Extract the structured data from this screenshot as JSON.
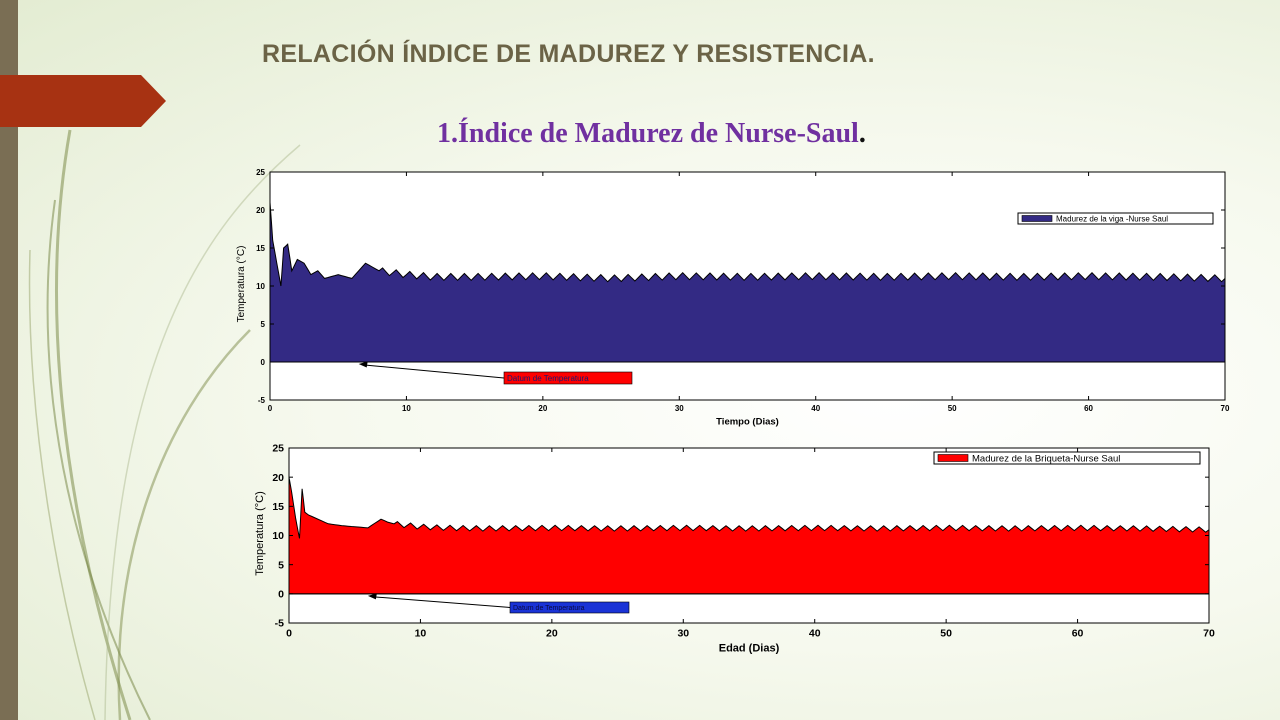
{
  "slide": {
    "title": "RELACIÓN ÍNDICE DE MADUREZ Y RESISTENCIA.",
    "subtitle": "1.Índice de Madurez de Nurse-Saul",
    "subtitle_dot": "."
  },
  "colors": {
    "left_bar": "#7a6e54",
    "accent_tab": "#a73212",
    "title": "#6b6346",
    "subtitle": "#7030a0"
  },
  "chart_data": [
    {
      "type": "area",
      "title": "",
      "xlabel": "Tiempo (Dias)",
      "ylabel": "Temperatura (°C)",
      "xlim": [
        0,
        70
      ],
      "ylim": [
        -5,
        25
      ],
      "xticks": [
        0,
        10,
        20,
        30,
        40,
        50,
        60,
        70
      ],
      "yticks": [
        -5,
        0,
        5,
        10,
        15,
        20,
        25
      ],
      "grid": false,
      "legend_position": "top-right",
      "fill_color": "#332a84",
      "series": [
        {
          "name": "Madurez de la viga -Nurse Saul",
          "x": [
            0,
            0.2,
            0.5,
            0.8,
            1.0,
            1.3,
            1.6,
            2.0,
            2.5,
            3.0,
            3.5,
            4.0,
            5.0,
            6.0,
            7.0,
            7.5,
            8.0,
            10.0,
            12.0,
            15.0,
            20.0,
            25.0,
            30.0,
            35.0,
            40.0,
            45.0,
            50.0,
            55.0,
            60.0,
            65.0,
            70.0
          ],
          "y": [
            21,
            16,
            13,
            10,
            15,
            15.5,
            12,
            13.5,
            13,
            11.5,
            12,
            11,
            11.5,
            11,
            13,
            12.5,
            12,
            11.5,
            11.2,
            11.2,
            11.3,
            11,
            11.3,
            11.2,
            11.3,
            11.2,
            11.3,
            11.2,
            11.3,
            11.2,
            11
          ]
        }
      ],
      "annotation": {
        "text": "Datum de Temperatura",
        "x": 6.5,
        "y": 0
      }
    },
    {
      "type": "area",
      "title": "",
      "xlabel": "Edad (Dias)",
      "ylabel": "Temperatura (°C)",
      "xlim": [
        0,
        70
      ],
      "ylim": [
        -5,
        25
      ],
      "xticks": [
        0,
        10,
        20,
        30,
        40,
        50,
        60,
        70
      ],
      "yticks": [
        -5,
        0,
        5,
        10,
        15,
        20,
        25
      ],
      "grid": false,
      "legend_position": "top-right",
      "fill_color": "#ff0000",
      "series": [
        {
          "name": "Madurez de la Briqueta-Nurse Saul",
          "x": [
            0,
            0.2,
            0.5,
            0.8,
            1.0,
            1.2,
            1.5,
            2.0,
            2.5,
            3.0,
            4.0,
            5.0,
            6.0,
            7.0,
            7.5,
            8.0,
            10.0,
            12.0,
            15.0,
            20.0,
            25.0,
            30.0,
            35.0,
            40.0,
            45.0,
            50.0,
            55.0,
            60.0,
            65.0,
            70.0
          ],
          "y": [
            20,
            17.5,
            13,
            9.5,
            18,
            14,
            13.5,
            13,
            12.5,
            12,
            11.7,
            11.5,
            11.3,
            12.8,
            12.3,
            12,
            11.5,
            11.3,
            11.2,
            11.3,
            11.2,
            11.3,
            11.2,
            11.3,
            11.2,
            11.3,
            11.2,
            11.3,
            11.2,
            11
          ]
        }
      ],
      "annotation": {
        "text": "Datum de Temperatura",
        "x": 6.0,
        "y": 0
      }
    }
  ]
}
